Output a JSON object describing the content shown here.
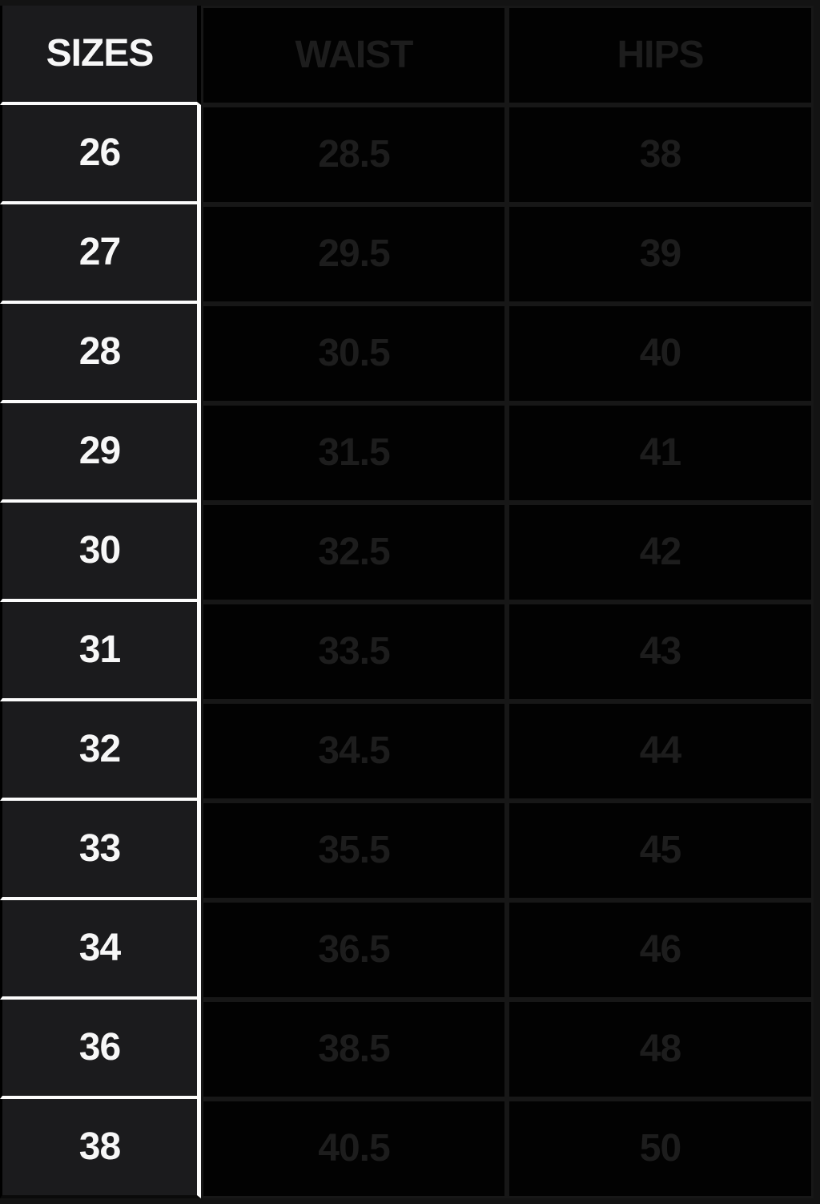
{
  "table": {
    "columns": [
      "SIZES",
      "WAIST",
      "HIPS"
    ],
    "rows": [
      {
        "size": "26",
        "waist": "28.5",
        "hips": "38"
      },
      {
        "size": "27",
        "waist": "29.5",
        "hips": "39"
      },
      {
        "size": "28",
        "waist": "30.5",
        "hips": "40"
      },
      {
        "size": "29",
        "waist": "31.5",
        "hips": "41"
      },
      {
        "size": "30",
        "waist": "32.5",
        "hips": "42"
      },
      {
        "size": "31",
        "waist": "33.5",
        "hips": "43"
      },
      {
        "size": "32",
        "waist": "34.5",
        "hips": "44"
      },
      {
        "size": "33",
        "waist": "35.5",
        "hips": "45"
      },
      {
        "size": "34",
        "waist": "36.5",
        "hips": "46"
      },
      {
        "size": "36",
        "waist": "38.5",
        "hips": "48"
      },
      {
        "size": "38",
        "waist": "40.5",
        "hips": "50"
      }
    ]
  },
  "colors": {
    "page_background": "#000000",
    "sizes_column_background": "#1b1b1d",
    "sizes_column_text": "#f7f7f7",
    "white_separator": "#fcfcfc",
    "dark_cell_background": "#020202",
    "dark_cell_text": "#1d1d1d",
    "grid_line": "#171717"
  },
  "chart_data": {
    "type": "table",
    "title": "Size chart (waist / hips per size)",
    "columns": [
      "SIZES",
      "WAIST",
      "HIPS"
    ],
    "rows": [
      [
        26,
        28.5,
        38
      ],
      [
        27,
        29.5,
        39
      ],
      [
        28,
        30.5,
        40
      ],
      [
        29,
        31.5,
        41
      ],
      [
        30,
        32.5,
        42
      ],
      [
        31,
        33.5,
        43
      ],
      [
        32,
        34.5,
        44
      ],
      [
        33,
        35.5,
        45
      ],
      [
        34,
        36.5,
        46
      ],
      [
        36,
        38.5,
        48
      ],
      [
        38,
        40.5,
        50
      ]
    ]
  }
}
